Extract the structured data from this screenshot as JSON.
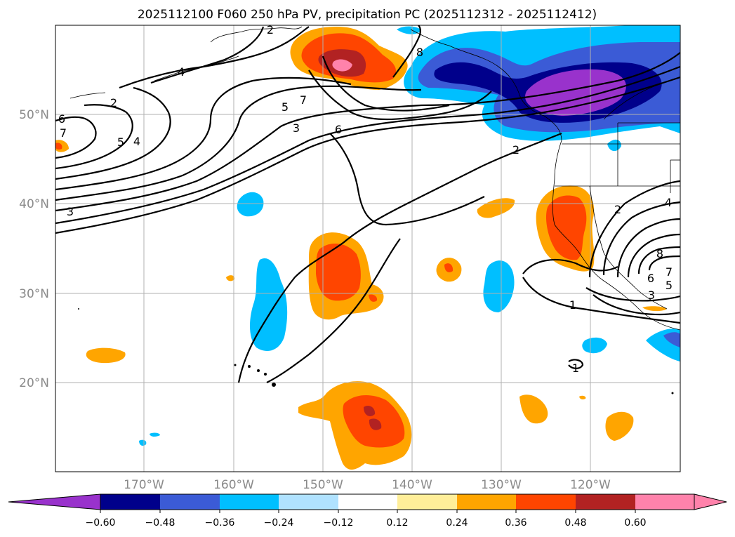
{
  "title": "2025112100 F060 250 hPa PV, precipitation PC (2025112312 - 2025112412)",
  "map": {
    "lat_labels": [
      "50°N",
      "40°N",
      "30°N",
      "20°N"
    ],
    "lon_labels": [
      "170°W",
      "160°W",
      "150°W",
      "140°W",
      "130°W",
      "120°W"
    ],
    "pv_contour_labels": [
      "2",
      "4",
      "6",
      "7",
      "5",
      "4",
      "3",
      "7",
      "5",
      "3",
      "6",
      "8",
      "2",
      "2",
      "1",
      "1",
      "2",
      "4",
      "8",
      "7",
      "6",
      "5",
      "3"
    ]
  },
  "colorbar": {
    "tick_labels": [
      "−0.60",
      "−0.48",
      "−0.36",
      "−0.24",
      "−0.12",
      "0.12",
      "0.24",
      "0.36",
      "0.48",
      "0.60"
    ],
    "colors": [
      "#9932cc",
      "#00008b",
      "#3b5bd6",
      "#00bfff",
      "#b0e2ff",
      "#ffffff",
      "#ffee99",
      "#ffa500",
      "#ff4500",
      "#b22222",
      "#ff82ab",
      "#ff82ab"
    ]
  }
}
